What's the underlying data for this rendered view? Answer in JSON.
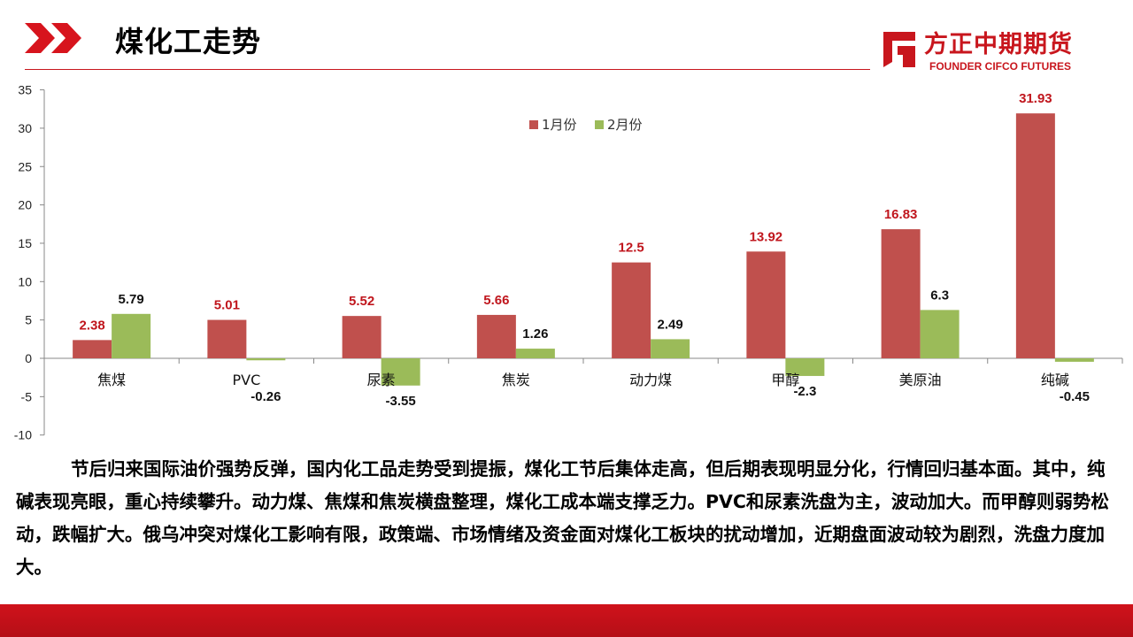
{
  "header": {
    "title": "煤化工走势",
    "logo_cn": "方正中期期货",
    "logo_en": "FOUNDER CIFCO FUTURES"
  },
  "colors": {
    "brand_red": "#c8161d",
    "series_jan": "#c0504d",
    "series_feb": "#9bbb59",
    "label_red": "#c0161d"
  },
  "chart_data": {
    "type": "bar",
    "title": "",
    "xlabel": "",
    "ylabel": "",
    "categories": [
      "焦煤",
      "PVC",
      "尿素",
      "焦炭",
      "动力煤",
      "甲醇",
      "美原油",
      "纯碱"
    ],
    "series": [
      {
        "name": "1月份",
        "values": [
          2.38,
          5.01,
          5.52,
          5.66,
          12.5,
          13.92,
          16.83,
          31.93
        ]
      },
      {
        "name": "2月份",
        "values": [
          5.79,
          -0.26,
          -3.55,
          1.26,
          2.49,
          -2.3,
          6.3,
          -0.45
        ]
      }
    ],
    "ylim": [
      -10,
      35
    ],
    "yticks": [
      -10,
      -5,
      0,
      5,
      10,
      15,
      20,
      25,
      30,
      35
    ],
    "grid": false,
    "legend": "top-center"
  },
  "description": "节后归来国际油价强势反弹，国内化工品走势受到提振，煤化工节后集体走高，但后期表现明显分化，行情回归基本面。其中，纯碱表现亮眼，重心持续攀升。动力煤、焦煤和焦炭横盘整理，煤化工成本端支撑乏力。PVC和尿素洗盘为主，波动加大。而甲醇则弱势松动，跌幅扩大。俄乌冲突对煤化工影响有限，政策端、市场情绪及资金面对煤化工板块的扰动增加，近期盘面波动较为剧烈，洗盘力度加大。"
}
